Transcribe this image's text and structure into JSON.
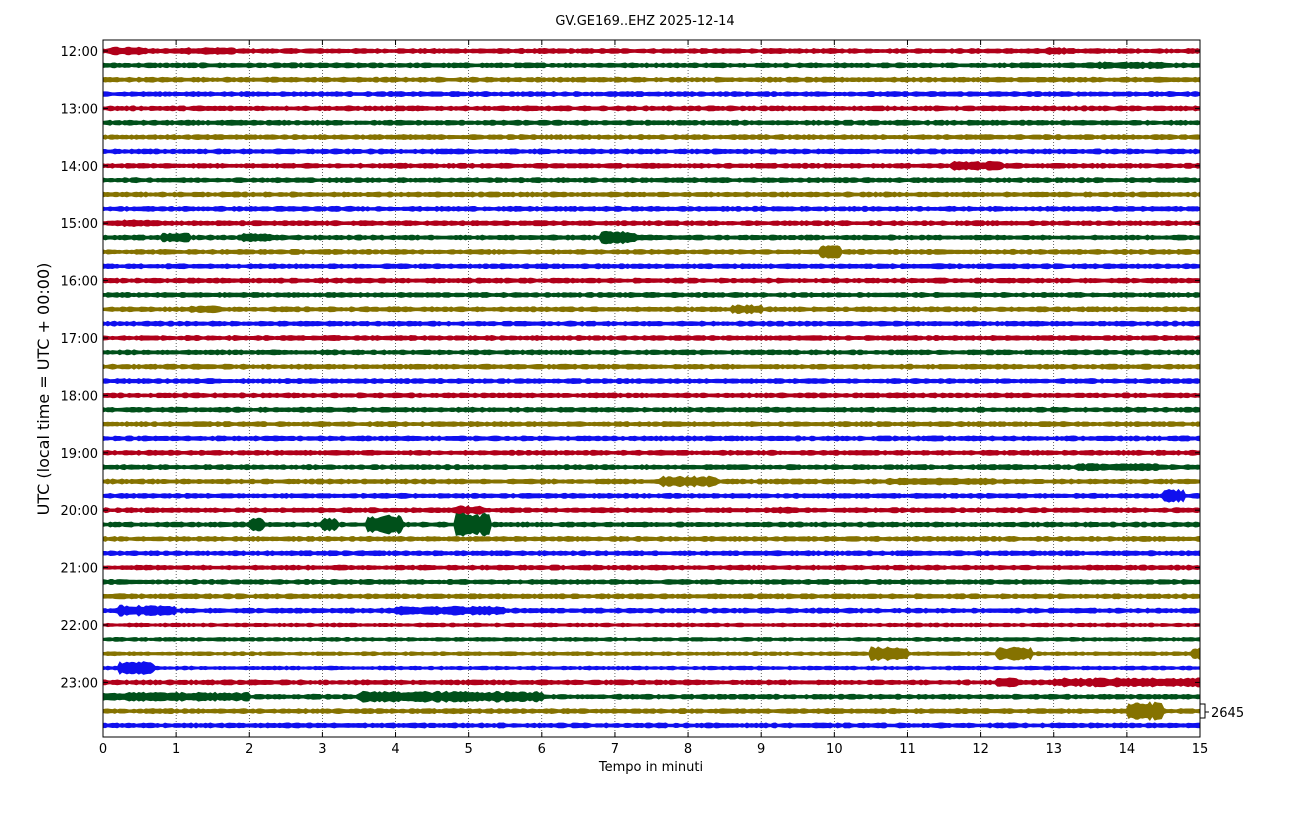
{
  "chart_data": {
    "type": "line",
    "title": "GV.GE169..EHZ 2025-12-14",
    "xlabel": "Tempo in minuti",
    "ylabel": "UTC (local time = UTC + 00:00)",
    "xlim": [
      0,
      15
    ],
    "x_ticks": [
      "0",
      "1",
      "2",
      "3",
      "4",
      "5",
      "6",
      "7",
      "8",
      "9",
      "10",
      "11",
      "12",
      "13",
      "14",
      "15"
    ],
    "y_ticks": [
      "12:00",
      "13:00",
      "14:00",
      "15:00",
      "16:00",
      "17:00",
      "18:00",
      "19:00",
      "20:00",
      "21:00",
      "22:00",
      "23:00"
    ],
    "trace_count": 48,
    "trace_minutes": 15,
    "start_time": "12:00",
    "trace_colors": [
      "#b0001a",
      "#00501a",
      "#857200",
      "#1010ee"
    ],
    "grid": "vertical-dotted",
    "scale_label": "2645"
  }
}
